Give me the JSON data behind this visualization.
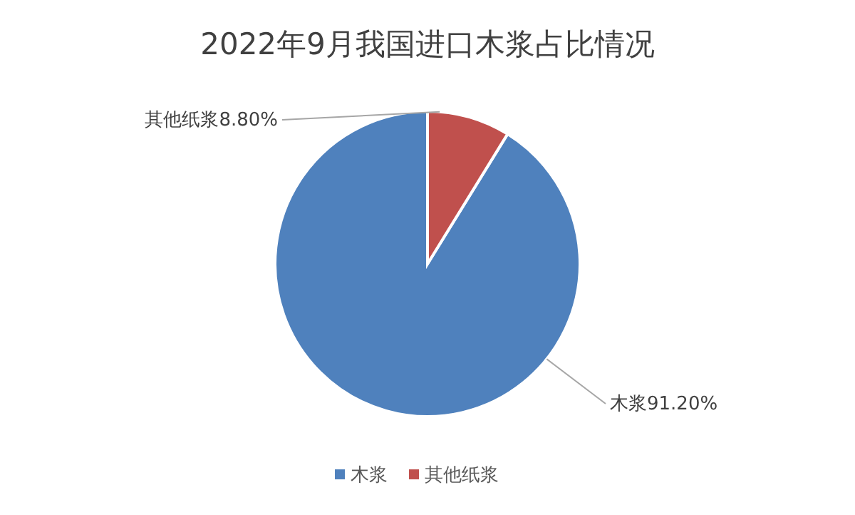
{
  "chart_data": {
    "type": "pie",
    "title": "2022年9月我国进口木浆占比情况",
    "categories": [
      "木浆",
      "其他纸浆"
    ],
    "values": [
      91.2,
      8.8
    ],
    "value_labels": [
      "91.20%",
      "8.80%"
    ],
    "colors": [
      "#4f81bd",
      "#c0504d"
    ],
    "legend": "bottom"
  }
}
